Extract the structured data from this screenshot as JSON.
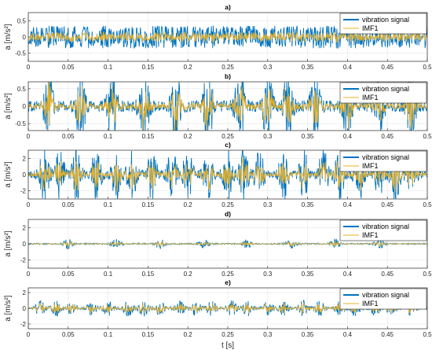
{
  "chart_data": [
    {
      "type": "line",
      "title": "a)",
      "ylabel": "a [m/s²]",
      "xlabel": "",
      "xlim": [
        0,
        0.5
      ],
      "ylim": [
        -0.75,
        0.75
      ],
      "xticks": [
        0,
        0.05,
        0.1,
        0.15,
        0.2,
        0.25,
        0.3,
        0.35,
        0.4,
        0.45,
        0.5
      ],
      "xtick_labels": [
        "0",
        "0.05",
        "0.1",
        "0.15",
        "0.2",
        "0.25",
        "0.3",
        "0.35",
        "0.4",
        "0.45",
        "0.5"
      ],
      "yticks": [
        -0.5,
        0,
        0.5
      ],
      "ytick_labels": [
        "-0.5",
        "0",
        "0.5"
      ],
      "grid": true,
      "legend": "top-right",
      "series": [
        {
          "name": "vibration signal",
          "color": "#0072BD",
          "amplitude_envelope": 0.3
        },
        {
          "name": "IMF1",
          "color": "#EDB120",
          "amplitude_envelope": 0.15
        }
      ],
      "burst_times": []
    },
    {
      "type": "line",
      "title": "b)",
      "ylabel": "a [m/s²]",
      "xlabel": "",
      "xlim": [
        0,
        0.5
      ],
      "ylim": [
        -0.7,
        0.7
      ],
      "xticks": [
        0,
        0.05,
        0.1,
        0.15,
        0.2,
        0.25,
        0.3,
        0.35,
        0.4,
        0.45,
        0.5
      ],
      "xtick_labels": [
        "0",
        "0.05",
        "0.1",
        "0.15",
        "0.2",
        "0.25",
        "0.3",
        "0.35",
        "0.4",
        "0.45",
        "0.5"
      ],
      "yticks": [
        -0.5,
        0,
        0.5
      ],
      "ytick_labels": [
        "-0.5",
        "0",
        "0.5"
      ],
      "grid": true,
      "legend": "top-right",
      "series": [
        {
          "name": "vibration signal",
          "color": "#0072BD",
          "amplitude_envelope": 0.55
        },
        {
          "name": "IMF1",
          "color": "#EDB120",
          "amplitude_envelope": 0.4
        }
      ],
      "burst_times": [
        0.025,
        0.065,
        0.105,
        0.145,
        0.185,
        0.225,
        0.265,
        0.3,
        0.325,
        0.36,
        0.4,
        0.44,
        0.48
      ]
    },
    {
      "type": "line",
      "title": "c)",
      "ylabel": "a [m/s²]",
      "xlabel": "",
      "xlim": [
        0,
        0.5
      ],
      "ylim": [
        -3,
        3
      ],
      "xticks": [
        0,
        0.05,
        0.1,
        0.15,
        0.2,
        0.25,
        0.3,
        0.35,
        0.4,
        0.45,
        0.5
      ],
      "xtick_labels": [
        "0",
        "0.05",
        "0.1",
        "0.15",
        "0.2",
        "0.25",
        "0.3",
        "0.35",
        "0.4",
        "0.45",
        "0.5"
      ],
      "yticks": [
        -2,
        0,
        2
      ],
      "ytick_labels": [
        "-2",
        "0",
        "2"
      ],
      "grid": true,
      "legend": "top-right",
      "series": [
        {
          "name": "vibration signal",
          "color": "#0072BD",
          "amplitude_envelope": 1.6
        },
        {
          "name": "IMF1",
          "color": "#EDB120",
          "amplitude_envelope": 1.1
        }
      ],
      "burst_times": [
        0.02,
        0.04,
        0.06,
        0.085,
        0.11,
        0.13,
        0.155,
        0.18,
        0.2,
        0.225,
        0.25,
        0.27,
        0.29,
        0.32,
        0.345,
        0.37,
        0.39,
        0.415,
        0.44,
        0.46,
        0.48
      ]
    },
    {
      "type": "line",
      "title": "d)",
      "ylabel": "a [m/s²]",
      "xlabel": "",
      "xlim": [
        0,
        0.5
      ],
      "ylim": [
        -3,
        3
      ],
      "xticks": [
        0,
        0.05,
        0.1,
        0.15,
        0.2,
        0.25,
        0.3,
        0.35,
        0.4,
        0.45,
        0.5
      ],
      "xtick_labels": [
        "0",
        "0.05",
        "0.1",
        "0.15",
        "0.2",
        "0.25",
        "0.3",
        "0.35",
        "0.4",
        "0.45",
        "0.5"
      ],
      "yticks": [
        -2,
        0,
        2
      ],
      "ytick_labels": [
        "-2",
        "0",
        "2"
      ],
      "grid": true,
      "legend": "top-right",
      "series": [
        {
          "name": "vibration signal",
          "color": "#0072BD",
          "amplitude_envelope": 0.3
        },
        {
          "name": "IMF1",
          "color": "#EDB120",
          "amplitude_envelope": 0.2
        }
      ],
      "burst_times": [
        0.05,
        0.11,
        0.165,
        0.22,
        0.275,
        0.33,
        0.385,
        0.44
      ]
    },
    {
      "type": "line",
      "title": "e)",
      "ylabel": "a [m/s²]",
      "xlabel": "t [s]",
      "xlim": [
        0,
        0.5
      ],
      "ylim": [
        -2.6,
        2.6
      ],
      "xticks": [
        0,
        0.05,
        0.1,
        0.15,
        0.2,
        0.25,
        0.3,
        0.35,
        0.4,
        0.45,
        0.5
      ],
      "xtick_labels": [
        "0",
        "0.05",
        "0.1",
        "0.15",
        "0.2",
        "0.25",
        "0.3",
        "0.35",
        "0.4",
        "0.45",
        "0.5"
      ],
      "yticks": [
        -2,
        0,
        2
      ],
      "ytick_labels": [
        "-2",
        "0",
        "2"
      ],
      "grid": true,
      "legend": "top-right",
      "series": [
        {
          "name": "vibration signal",
          "color": "#0072BD",
          "amplitude_envelope": 0.5
        },
        {
          "name": "IMF1",
          "color": "#EDB120",
          "amplitude_envelope": 0.4
        }
      ],
      "burst_times": [
        0.015,
        0.035,
        0.055,
        0.08,
        0.1,
        0.125,
        0.145,
        0.165,
        0.19,
        0.21,
        0.23,
        0.255,
        0.275,
        0.3,
        0.32,
        0.345,
        0.365,
        0.39,
        0.41,
        0.435,
        0.455,
        0.48
      ]
    }
  ]
}
